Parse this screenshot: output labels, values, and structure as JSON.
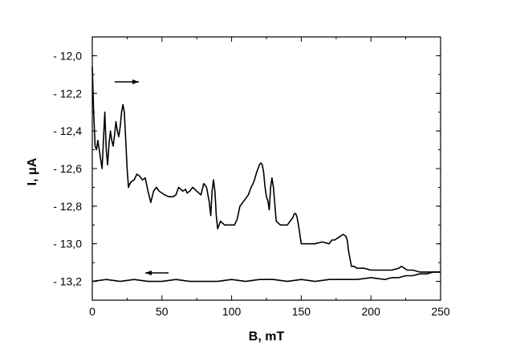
{
  "chart_data": {
    "type": "line",
    "xlabel": "B, mT",
    "ylabel": "I, μA",
    "xlim": [
      0,
      250
    ],
    "ylim": [
      -13.3,
      -11.9
    ],
    "x_ticks": [
      0,
      50,
      100,
      150,
      200,
      250
    ],
    "x_tick_labels": [
      "0",
      "50",
      "100",
      "150",
      "200",
      "250"
    ],
    "y_ticks": [
      -12.0,
      -12.2,
      -12.4,
      -12.6,
      -12.8,
      -13.0,
      -13.2
    ],
    "y_tick_labels": [
      "- 12,0",
      "- 12,2",
      "- 12,4",
      "- 12,6",
      "- 12,8",
      "- 13,0",
      "- 13,2"
    ],
    "grid": false,
    "legend": "none",
    "line_color": "#000000",
    "annotations": [
      {
        "kind": "arrow",
        "direction": "right",
        "near_series": "sweep up"
      },
      {
        "kind": "arrow",
        "direction": "left",
        "near_series": "sweep down"
      }
    ],
    "series": [
      {
        "x": [
          0,
          1,
          2,
          3,
          4,
          5,
          6,
          7,
          8,
          9,
          10,
          11,
          12,
          13,
          14,
          15,
          16,
          17,
          18,
          19,
          20,
          21,
          22,
          23,
          24,
          25,
          26,
          27,
          28,
          30,
          32,
          34,
          36,
          38,
          40,
          42,
          44,
          46,
          48,
          50,
          52,
          55,
          58,
          60,
          62,
          65,
          67,
          68,
          70,
          72,
          75,
          78,
          80,
          82,
          84,
          85,
          86,
          87,
          88,
          89,
          90,
          92,
          95,
          98,
          100,
          102,
          104,
          106,
          108,
          110,
          112,
          114,
          116,
          118,
          120,
          121,
          122,
          123,
          124,
          125,
          126,
          127,
          128,
          129,
          130,
          132,
          135,
          138,
          140,
          142,
          144,
          145,
          146,
          147,
          148,
          150,
          155,
          160,
          165,
          170,
          172,
          174,
          176,
          178,
          180,
          182,
          183,
          184,
          185,
          186,
          188,
          190,
          192,
          195,
          200,
          205,
          210,
          215,
          220,
          222,
          224,
          226,
          230,
          235,
          240,
          245,
          250
        ],
        "y": [
          -12.06,
          -12.3,
          -12.48,
          -12.5,
          -12.45,
          -12.5,
          -12.55,
          -12.6,
          -12.45,
          -12.3,
          -12.5,
          -12.58,
          -12.47,
          -12.4,
          -12.45,
          -12.48,
          -12.42,
          -12.35,
          -12.4,
          -12.43,
          -12.38,
          -12.3,
          -12.26,
          -12.3,
          -12.45,
          -12.6,
          -12.7,
          -12.68,
          -12.67,
          -12.66,
          -12.63,
          -12.64,
          -12.66,
          -12.65,
          -12.72,
          -12.78,
          -12.72,
          -12.7,
          -12.72,
          -12.73,
          -12.74,
          -12.75,
          -12.75,
          -12.74,
          -12.7,
          -12.72,
          -12.71,
          -12.73,
          -12.72,
          -12.7,
          -12.72,
          -12.74,
          -12.68,
          -12.7,
          -12.78,
          -12.85,
          -12.72,
          -12.66,
          -12.72,
          -12.85,
          -12.92,
          -12.88,
          -12.9,
          -12.9,
          -12.9,
          -12.9,
          -12.87,
          -12.8,
          -12.78,
          -12.76,
          -12.74,
          -12.7,
          -12.67,
          -12.62,
          -12.58,
          -12.57,
          -12.58,
          -12.62,
          -12.7,
          -12.75,
          -12.77,
          -12.82,
          -12.7,
          -12.65,
          -12.7,
          -12.88,
          -12.9,
          -12.9,
          -12.9,
          -12.88,
          -12.86,
          -12.84,
          -12.84,
          -12.86,
          -12.9,
          -13.0,
          -13.0,
          -13.0,
          -12.99,
          -13.0,
          -12.98,
          -12.98,
          -12.97,
          -12.96,
          -12.95,
          -12.96,
          -12.98,
          -13.04,
          -13.08,
          -13.12,
          -13.12,
          -13.13,
          -13.13,
          -13.13,
          -13.14,
          -13.14,
          -13.14,
          -13.14,
          -13.13,
          -13.12,
          -13.13,
          -13.14,
          -13.14,
          -13.15,
          -13.15,
          -13.15,
          -13.15
        ]
      },
      {
        "x": [
          0,
          10,
          20,
          30,
          40,
          50,
          60,
          70,
          80,
          90,
          100,
          110,
          120,
          130,
          140,
          150,
          160,
          170,
          180,
          190,
          200,
          210,
          215,
          220,
          225,
          230,
          235,
          240,
          245,
          250
        ],
        "y": [
          -13.2,
          -13.19,
          -13.2,
          -13.19,
          -13.2,
          -13.2,
          -13.19,
          -13.2,
          -13.2,
          -13.2,
          -13.19,
          -13.2,
          -13.19,
          -13.19,
          -13.2,
          -13.19,
          -13.2,
          -13.19,
          -13.19,
          -13.19,
          -13.18,
          -13.19,
          -13.18,
          -13.18,
          -13.17,
          -13.17,
          -13.16,
          -13.16,
          -13.15,
          -13.15
        ]
      }
    ]
  }
}
